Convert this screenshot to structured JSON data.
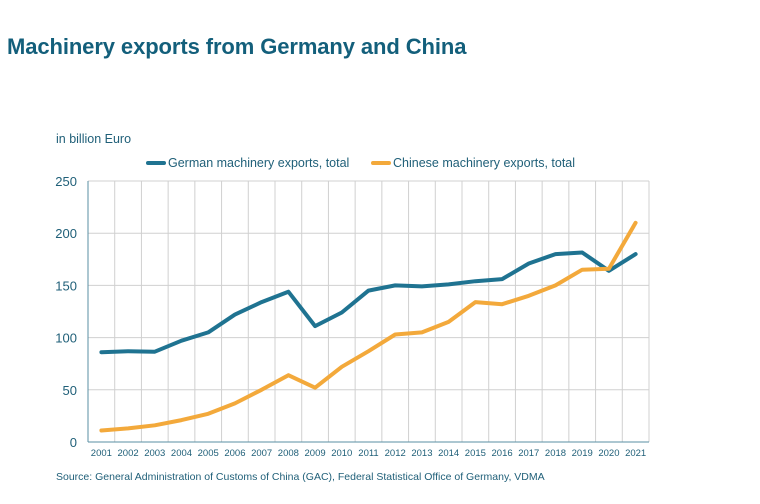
{
  "title": "Machinery exports from Germany and China",
  "chart_data": {
    "type": "line",
    "title": "Machinery exports from Germany and China",
    "ylabel": "in billion Euro",
    "xlabel": "",
    "ylim": [
      0,
      250
    ],
    "yticks": [
      0,
      50,
      100,
      150,
      200,
      250
    ],
    "grid": true,
    "legend_position": "top",
    "categories": [
      "2001",
      "2002",
      "2003",
      "2004",
      "2005",
      "2006",
      "2007",
      "2008",
      "2009",
      "2010",
      "2011",
      "2012",
      "2013",
      "2014",
      "2015",
      "2016",
      "2017",
      "2018",
      "2019",
      "2020",
      "2021"
    ],
    "series": [
      {
        "name": "German machinery exports, total",
        "color": "#1f7391",
        "values": [
          86,
          87,
          86.5,
          97,
          105,
          122,
          134,
          144,
          111,
          124,
          145,
          150,
          149,
          151,
          154,
          156,
          171,
          180,
          181.5,
          164,
          180
        ]
      },
      {
        "name": "Chinese machinery exports, total",
        "color": "#f3a93b",
        "values": [
          11,
          13,
          16,
          21,
          27,
          37,
          50,
          64,
          52,
          72,
          87,
          103,
          105,
          115,
          134,
          132,
          140,
          150,
          165,
          166,
          210
        ]
      }
    ]
  },
  "source": "Source: General Administration of Customs of China (GAC), Federal Statistical Office of Germany, VDMA"
}
